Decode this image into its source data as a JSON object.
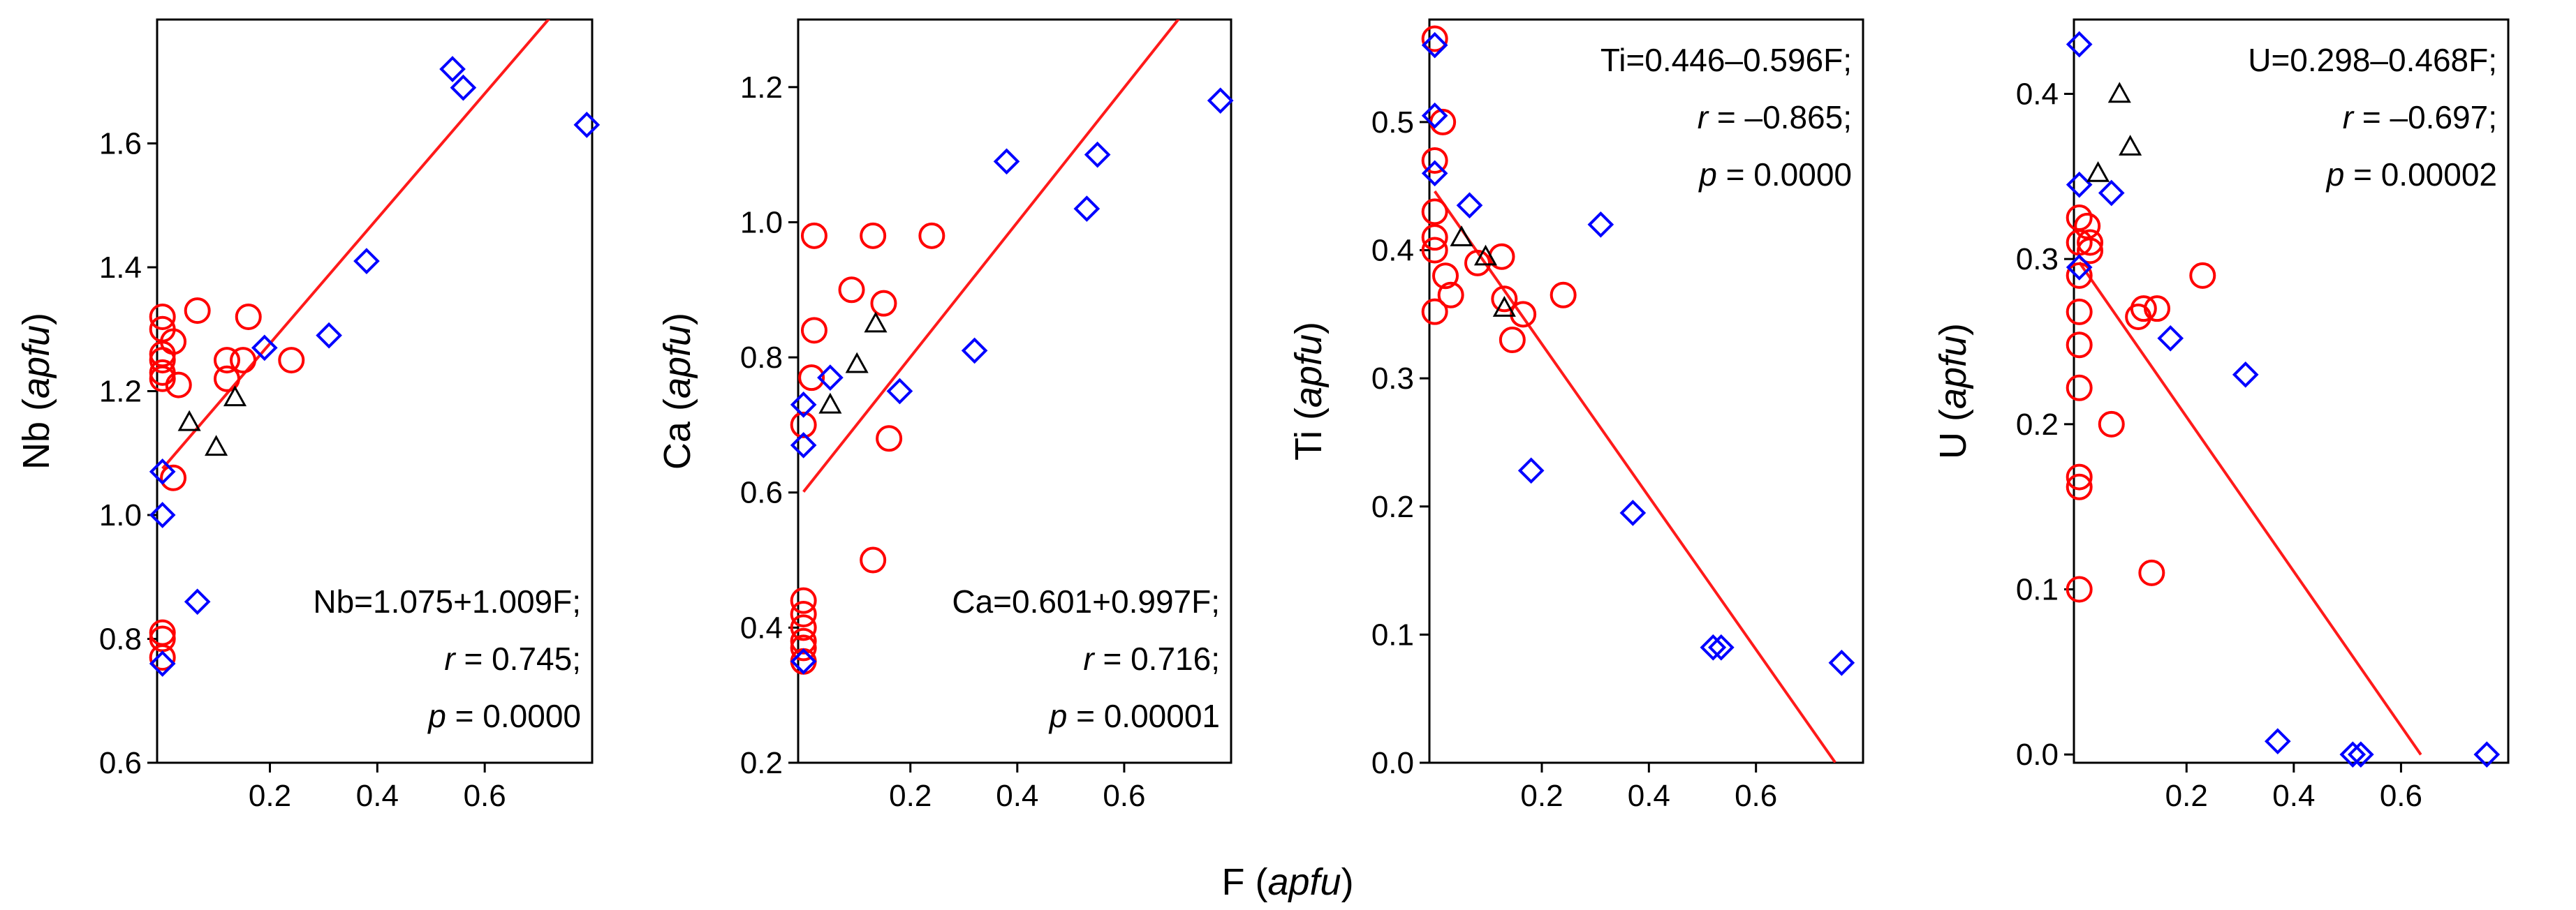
{
  "figure": {
    "shared_xlabel_main": "F",
    "shared_xlabel_unit": "apfu"
  },
  "chart_data": [
    {
      "type": "scatter",
      "ylabel_main": "Nb",
      "ylabel_unit": "apfu",
      "xlim": [
        -0.01,
        0.8
      ],
      "ylim": [
        0.6,
        1.8
      ],
      "xticks": [
        0.2,
        0.4,
        0.6
      ],
      "yticks": [
        0.6,
        0.8,
        1.0,
        1.2,
        1.4,
        1.6
      ],
      "xtick_labels": [
        "0.2",
        "0.4",
        "0.6"
      ],
      "ytick_labels": [
        "0.6",
        "0.8",
        "1.0",
        "1.2",
        "1.4",
        "1.6"
      ],
      "regression": {
        "intercept": 1.075,
        "slope": 1.009,
        "x_range": [
          0.0,
          0.8
        ]
      },
      "annotation": {
        "eq": "Nb=1.075+1.009F;",
        "r_label": "r",
        "r_value": " = 0.745;",
        "p_label": "p",
        "p_value": " = 0.0000",
        "position": "bottom-right"
      },
      "series": [
        {
          "marker": "circle",
          "color": "#ff0000",
          "points": [
            [
              0.0,
              1.32
            ],
            [
              0.0,
              1.3
            ],
            [
              0.0,
              1.26
            ],
            [
              0.0,
              1.25
            ],
            [
              0.0,
              1.23
            ],
            [
              0.0,
              1.22
            ],
            [
              0.0,
              0.81
            ],
            [
              0.0,
              0.8
            ],
            [
              0.0,
              0.77
            ],
            [
              0.02,
              1.28
            ],
            [
              0.03,
              1.21
            ],
            [
              0.065,
              1.33
            ],
            [
              0.12,
              1.25
            ],
            [
              0.12,
              1.22
            ],
            [
              0.15,
              1.25
            ],
            [
              0.16,
              1.32
            ],
            [
              0.24,
              1.25
            ],
            [
              0.02,
              1.06
            ]
          ]
        },
        {
          "marker": "diamond",
          "color": "#0000ff",
          "points": [
            [
              0.0,
              1.07
            ],
            [
              0.0,
              1.0
            ],
            [
              0.0,
              0.76
            ],
            [
              0.065,
              0.86
            ],
            [
              0.19,
              1.27
            ],
            [
              0.31,
              1.29
            ],
            [
              0.38,
              1.41
            ],
            [
              0.54,
              1.72
            ],
            [
              0.56,
              1.69
            ],
            [
              0.79,
              1.63
            ]
          ]
        },
        {
          "marker": "triangle",
          "color": "#000000",
          "points": [
            [
              0.05,
              1.15
            ],
            [
              0.1,
              1.11
            ],
            [
              0.135,
              1.19
            ]
          ]
        }
      ]
    },
    {
      "type": "scatter",
      "ylabel_main": "Ca",
      "ylabel_unit": "apfu",
      "xlim": [
        -0.01,
        0.8
      ],
      "ylim": [
        0.2,
        1.3
      ],
      "xticks": [
        0.2,
        0.4,
        0.6
      ],
      "yticks": [
        0.2,
        0.4,
        0.6,
        0.8,
        1.0,
        1.2
      ],
      "xtick_labels": [
        "0.2",
        "0.4",
        "0.6"
      ],
      "ytick_labels": [
        "0.2",
        "0.4",
        "0.6",
        "0.8",
        "1.0",
        "1.2"
      ],
      "regression": {
        "intercept": 0.601,
        "slope": 0.997,
        "x_range": [
          0.0,
          0.8
        ]
      },
      "annotation": {
        "eq": "Ca=0.601+0.997F;",
        "r_label": "r",
        "r_value": " = 0.716;",
        "p_label": "p",
        "p_value": " = 0.00001",
        "position": "bottom-right"
      },
      "series": [
        {
          "marker": "circle",
          "color": "#ff0000",
          "points": [
            [
              0.0,
              0.7
            ],
            [
              0.0,
              0.44
            ],
            [
              0.0,
              0.42
            ],
            [
              0.0,
              0.4
            ],
            [
              0.0,
              0.38
            ],
            [
              0.0,
              0.37
            ],
            [
              0.0,
              0.35
            ],
            [
              0.02,
              0.98
            ],
            [
              0.02,
              0.84
            ],
            [
              0.015,
              0.77
            ],
            [
              0.09,
              0.9
            ],
            [
              0.13,
              0.98
            ],
            [
              0.15,
              0.88
            ],
            [
              0.13,
              0.5
            ],
            [
              0.24,
              0.98
            ],
            [
              0.16,
              0.68
            ]
          ]
        },
        {
          "marker": "diamond",
          "color": "#0000ff",
          "points": [
            [
              0.0,
              0.73
            ],
            [
              0.0,
              0.67
            ],
            [
              0.0,
              0.35
            ],
            [
              0.05,
              0.77
            ],
            [
              0.18,
              0.75
            ],
            [
              0.32,
              0.81
            ],
            [
              0.38,
              1.09
            ],
            [
              0.53,
              1.02
            ],
            [
              0.55,
              1.1
            ],
            [
              0.78,
              1.18
            ]
          ]
        },
        {
          "marker": "triangle",
          "color": "#000000",
          "points": [
            [
              0.05,
              0.73
            ],
            [
              0.1,
              0.79
            ],
            [
              0.135,
              0.85
            ]
          ]
        }
      ]
    },
    {
      "type": "scatter",
      "ylabel_main": "Ti",
      "ylabel_unit": "apfu",
      "xlim": [
        -0.01,
        0.8
      ],
      "ylim": [
        0.0,
        0.58
      ],
      "xticks": [
        0.2,
        0.4,
        0.6
      ],
      "yticks": [
        0.0,
        0.1,
        0.2,
        0.3,
        0.4,
        0.5
      ],
      "xtick_labels": [
        "0.2",
        "0.4",
        "0.6"
      ],
      "ytick_labels": [
        "0.0",
        "0.1",
        "0.2",
        "0.3",
        "0.4",
        "0.5"
      ],
      "regression": {
        "intercept": 0.446,
        "slope": -0.596,
        "x_range": [
          0.0,
          0.748
        ]
      },
      "annotation": {
        "eq": "Ti=0.446–0.596F;",
        "r_label": "r",
        "r_value": " = –0.865;",
        "p_label": "p",
        "p_value": " = 0.0000",
        "position": "top-right"
      },
      "series": [
        {
          "marker": "circle",
          "color": "#ff0000",
          "points": [
            [
              0.0,
              0.565
            ],
            [
              0.0,
              0.47
            ],
            [
              0.0,
              0.43
            ],
            [
              0.0,
              0.41
            ],
            [
              0.0,
              0.4
            ],
            [
              0.0,
              0.352
            ],
            [
              0.015,
              0.5
            ],
            [
              0.02,
              0.38
            ],
            [
              0.03,
              0.365
            ],
            [
              0.08,
              0.39
            ],
            [
              0.125,
              0.395
            ],
            [
              0.13,
              0.362
            ],
            [
              0.145,
              0.33
            ],
            [
              0.165,
              0.35
            ],
            [
              0.24,
              0.365
            ]
          ]
        },
        {
          "marker": "diamond",
          "color": "#0000ff",
          "points": [
            [
              0.0,
              0.56
            ],
            [
              0.0,
              0.505
            ],
            [
              0.0,
              0.46
            ],
            [
              0.065,
              0.435
            ],
            [
              0.18,
              0.228
            ],
            [
              0.31,
              0.42
            ],
            [
              0.37,
              0.195
            ],
            [
              0.52,
              0.09
            ],
            [
              0.535,
              0.09
            ],
            [
              0.76,
              0.078
            ]
          ]
        },
        {
          "marker": "triangle",
          "color": "#000000",
          "points": [
            [
              0.05,
              0.41
            ],
            [
              0.095,
              0.395
            ],
            [
              0.13,
              0.355
            ]
          ]
        }
      ]
    },
    {
      "type": "scatter",
      "ylabel_main": "U",
      "ylabel_unit": "apfu",
      "xlim": [
        -0.01,
        0.8
      ],
      "ylim": [
        -0.005,
        0.445
      ],
      "xticks": [
        0.2,
        0.4,
        0.6
      ],
      "yticks": [
        0.0,
        0.1,
        0.2,
        0.3,
        0.4
      ],
      "xtick_labels": [
        "0.2",
        "0.4",
        "0.6"
      ],
      "ytick_labels": [
        "0.0",
        "0.1",
        "0.2",
        "0.3",
        "0.4"
      ],
      "regression": {
        "intercept": 0.298,
        "slope": -0.468,
        "x_range": [
          0.0,
          0.637
        ]
      },
      "annotation": {
        "eq": "U=0.298–0.468F;",
        "r_label": "r",
        "r_value": " = –0.697;",
        "p_label": "p",
        "p_value": " = 0.00002",
        "position": "top-right"
      },
      "series": [
        {
          "marker": "circle",
          "color": "#ff0000",
          "points": [
            [
              0.0,
              0.325
            ],
            [
              0.0,
              0.31
            ],
            [
              0.0,
              0.29
            ],
            [
              0.0,
              0.268
            ],
            [
              0.0,
              0.248
            ],
            [
              0.0,
              0.222
            ],
            [
              0.0,
              0.168
            ],
            [
              0.0,
              0.162
            ],
            [
              0.0,
              0.1
            ],
            [
              0.015,
              0.32
            ],
            [
              0.02,
              0.31
            ],
            [
              0.02,
              0.305
            ],
            [
              0.06,
              0.2
            ],
            [
              0.11,
              0.265
            ],
            [
              0.12,
              0.27
            ],
            [
              0.145,
              0.27
            ],
            [
              0.135,
              0.11
            ],
            [
              0.23,
              0.29
            ]
          ]
        },
        {
          "marker": "diamond",
          "color": "#0000ff",
          "points": [
            [
              0.0,
              0.43
            ],
            [
              0.0,
              0.345
            ],
            [
              0.0,
              0.295
            ],
            [
              0.06,
              0.34
            ],
            [
              0.17,
              0.252
            ],
            [
              0.31,
              0.23
            ],
            [
              0.37,
              0.008
            ],
            [
              0.51,
              0.0
            ],
            [
              0.525,
              0.0
            ],
            [
              0.76,
              0.0
            ]
          ]
        },
        {
          "marker": "triangle",
          "color": "#000000",
          "points": [
            [
              0.035,
              0.352
            ],
            [
              0.075,
              0.4
            ],
            [
              0.095,
              0.368
            ]
          ]
        }
      ]
    }
  ]
}
